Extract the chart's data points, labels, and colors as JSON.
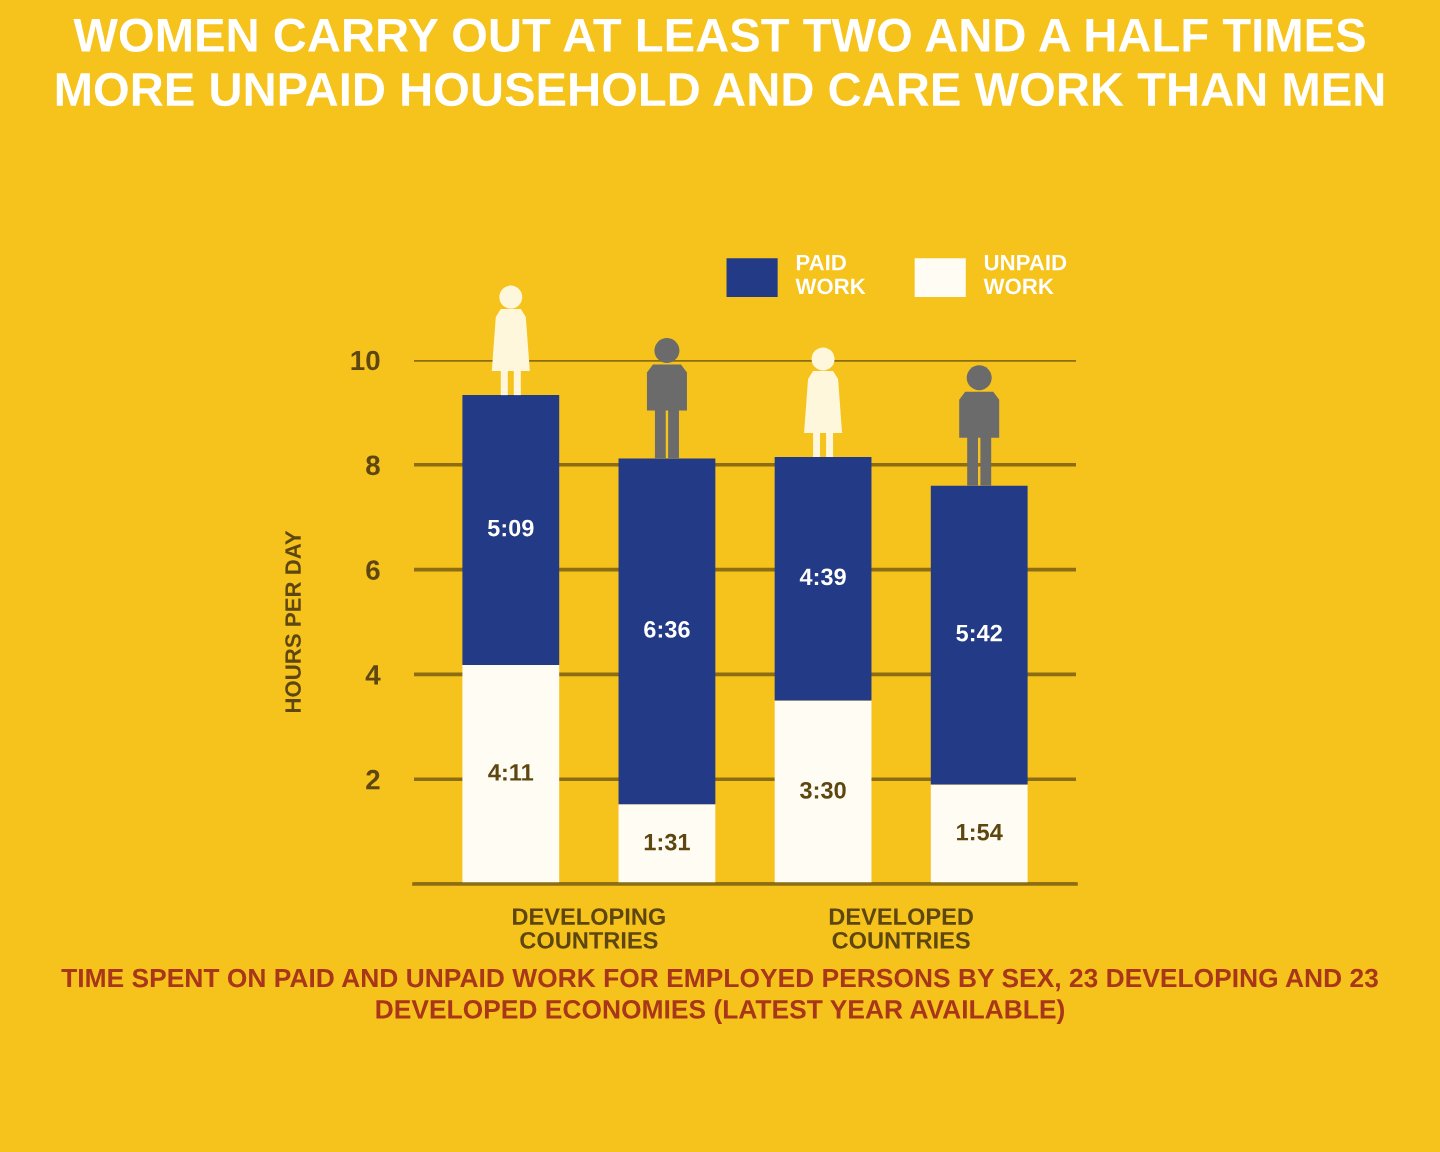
{
  "chart_data": {
    "type": "bar",
    "title": "WOMEN CARRY OUT AT LEAST TWO AND A HALF TIMES MORE UNPAID HOUSEHOLD AND CARE WORK THAN MEN",
    "ylabel": "HOURS PER DAY",
    "categories": [
      null,
      null,
      null,
      null
    ],
    "stacked": true,
    "series": [
      {
        "name": "UNPAID WORK",
        "color": "#fffdf3",
        "values": [
          4.18,
          1.52,
          3.5,
          1.9
        ],
        "value_labels": [
          "4:11",
          "1:31",
          "3:30",
          "1:54"
        ]
      },
      {
        "name": "PAID WORK",
        "color": "#233a86",
        "values": [
          5.15,
          6.6,
          4.65,
          5.7
        ],
        "value_labels": [
          "5:09",
          "6:36",
          "4:39",
          "5:42"
        ]
      }
    ],
    "ylim": [
      0,
      10
    ],
    "yticks": [
      {
        "value": 0,
        "label": null
      },
      2,
      4,
      6,
      8,
      10
    ],
    "grid": "y",
    "legend": "top right",
    "annotations": [
      "DEVELOPING COUNTRIES",
      "DEVELOPED COUNTRIES",
      "TIME SPENT ON PAID AND UNPAID WORK FOR EMPLOYED PERSONS BY SEX, 23 DEVELOPING AND 23 DEVELOPED ECONOMIES (LATEST YEAR AVAILABLE)"
    ]
  }
}
